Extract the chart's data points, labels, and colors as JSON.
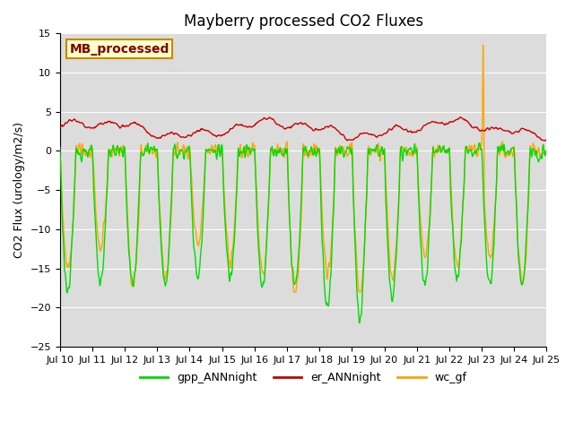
{
  "title": "Mayberry processed CO2 Fluxes",
  "ylabel": "CO2 Flux (urology/m2/s)",
  "ylim": [
    -25,
    15
  ],
  "yticks": [
    -25,
    -20,
    -15,
    -10,
    -5,
    0,
    5,
    10,
    15
  ],
  "color_gpp": "#00dd00",
  "color_er": "#cc0000",
  "color_wc": "#ffa500",
  "legend_label": "MB_processed",
  "legend_box_facecolor": "#ffffcc",
  "legend_box_edgecolor": "#cc8800",
  "bg_color": "#dcdcdc",
  "line_width": 1.0,
  "title_fontsize": 12,
  "label_fontsize": 9,
  "tick_fontsize": 8,
  "legend_fontsize": 9
}
